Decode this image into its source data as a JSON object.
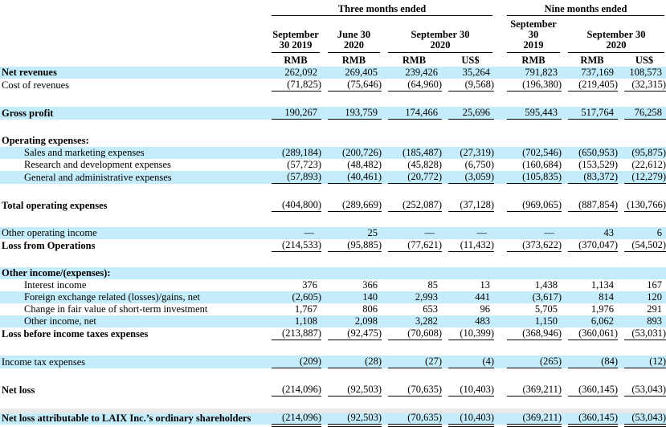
{
  "colors": {
    "highlight": "#c5ecfb",
    "rule": "#000000"
  },
  "header": {
    "group1": "Three months ended",
    "group2": "Nine months ended",
    "dates": [
      {
        "line1": "September",
        "line2": "30 2019"
      },
      {
        "line1": "June 30",
        "line2": "2020"
      },
      {
        "line1": "September 30",
        "line2": "2020"
      },
      {
        "line1": "September 30",
        "line2": "2019"
      },
      {
        "line1": "September 30",
        "line2": "2020"
      }
    ],
    "currencies": [
      "RMB",
      "RMB",
      "RMB",
      "US$",
      "RMB",
      "RMB",
      "US$"
    ]
  },
  "rows": [
    {
      "label": "Net revenues",
      "bold": true,
      "highlight": true,
      "indent": false,
      "underline": "none",
      "values": [
        "262,092",
        "269,405",
        "239,426",
        "35,264",
        "791,823",
        "737,169",
        "108,573"
      ]
    },
    {
      "label": "Cost of revenues",
      "bold": false,
      "highlight": false,
      "indent": false,
      "underline": "single",
      "values": [
        "(71,825)",
        "(75,646)",
        "(64,960)",
        "(9,568)",
        "(196,380)",
        "(219,405)",
        "(32,315)"
      ]
    },
    {
      "type": "spacer"
    },
    {
      "label": "Gross profit",
      "bold": true,
      "highlight": true,
      "indent": false,
      "underline": "single",
      "values": [
        "190,267",
        "193,759",
        "174,466",
        "25,696",
        "595,443",
        "517,764",
        "76,258"
      ]
    },
    {
      "type": "spacer"
    },
    {
      "label": "Operating expenses:",
      "bold": true,
      "highlight": false,
      "indent": false,
      "underline": "none",
      "values": [
        "",
        "",
        "",
        "",
        "",
        "",
        ""
      ]
    },
    {
      "label": "Sales and marketing expenses",
      "bold": false,
      "highlight": true,
      "indent": true,
      "underline": "none",
      "values": [
        "(289,184)",
        "(200,726)",
        "(185,487)",
        "(27,319)",
        "(702,546)",
        "(650,953)",
        "(95,875)"
      ]
    },
    {
      "label": "Research and development expenses",
      "bold": false,
      "highlight": false,
      "indent": true,
      "underline": "none",
      "values": [
        "(57,723)",
        "(48,482)",
        "(45,828)",
        "(6,750)",
        "(160,684)",
        "(153,529)",
        "(22,612)"
      ]
    },
    {
      "label": "General and administrative expenses",
      "bold": false,
      "highlight": true,
      "indent": true,
      "underline": "single",
      "values": [
        "(57,893)",
        "(40,461)",
        "(20,772)",
        "(3,059)",
        "(105,835)",
        "(83,372)",
        "(12,279)"
      ]
    },
    {
      "type": "spacer"
    },
    {
      "label": "Total operating expenses",
      "bold": true,
      "highlight": false,
      "indent": false,
      "underline": "single",
      "values": [
        "(404,800)",
        "(289,669)",
        "(252,087)",
        "(37,128)",
        "(969,065)",
        "(887,854)",
        "(130,766)"
      ]
    },
    {
      "type": "spacer"
    },
    {
      "label": "Other operating income",
      "bold": false,
      "highlight": true,
      "indent": false,
      "underline": "none",
      "values": [
        "—",
        "25",
        "—",
        "—",
        "—",
        "43",
        "6"
      ]
    },
    {
      "label": "Loss from Operations",
      "bold": true,
      "highlight": false,
      "indent": false,
      "underline": "single",
      "values": [
        "(214,533)",
        "(95,885)",
        "(77,621)",
        "(11,432)",
        "(373,622)",
        "(370,047)",
        "(54,502)"
      ]
    },
    {
      "type": "spacer"
    },
    {
      "label": "Other income/(expenses):",
      "bold": true,
      "highlight": true,
      "indent": false,
      "underline": "none",
      "values": [
        "",
        "",
        "",
        "",
        "",
        "",
        ""
      ]
    },
    {
      "label": "Interest income",
      "bold": false,
      "highlight": false,
      "indent": true,
      "underline": "none",
      "values": [
        "376",
        "366",
        "85",
        "13",
        "1,438",
        "1,134",
        "167"
      ]
    },
    {
      "label": "Foreign exchange related (losses)/gains, net",
      "bold": false,
      "highlight": true,
      "indent": true,
      "underline": "none",
      "values": [
        "(2,605)",
        "140",
        "2,993",
        "441",
        "(3,617)",
        "814",
        "120"
      ]
    },
    {
      "label": "Change in fair value of short-term investment",
      "bold": false,
      "highlight": false,
      "indent": true,
      "underline": "none",
      "values": [
        "1,767",
        "806",
        "653",
        "96",
        "5,705",
        "1,976",
        "291"
      ]
    },
    {
      "label": "Other income, net",
      "bold": false,
      "highlight": true,
      "indent": true,
      "underline": "none",
      "values": [
        "1,108",
        "2,098",
        "3,282",
        "483",
        "1,150",
        "6,062",
        "893"
      ]
    },
    {
      "label": "Loss before income taxes expenses",
      "bold": true,
      "highlight": false,
      "indent": false,
      "underline": "single",
      "values": [
        "(213,887)",
        "(92,475)",
        "(70,608)",
        "(10,399)",
        "(368,946)",
        "(360,061)",
        "(53,031)"
      ]
    },
    {
      "type": "spacer"
    },
    {
      "label": "Income tax expenses",
      "bold": false,
      "highlight": true,
      "indent": false,
      "underline": "single",
      "values": [
        "(209)",
        "(28)",
        "(27)",
        "(4)",
        "(265)",
        "(84)",
        "(12)"
      ]
    },
    {
      "type": "spacer"
    },
    {
      "label": "Net loss",
      "bold": true,
      "highlight": false,
      "indent": false,
      "underline": "single",
      "values": [
        "(214,096)",
        "(92,503)",
        "(70,635)",
        "(10,403)",
        "(369,211)",
        "(360,145)",
        "(53,043)"
      ]
    },
    {
      "type": "spacer"
    },
    {
      "label": "Net loss attributable to LAIX Inc.’s ordinary shareholders",
      "bold": true,
      "highlight": true,
      "indent": false,
      "underline": "double",
      "values": [
        "(214,096)",
        "(92,503)",
        "(70,635)",
        "(10,403)",
        "(369,211)",
        "(360,145)",
        "(53,043)"
      ]
    }
  ]
}
